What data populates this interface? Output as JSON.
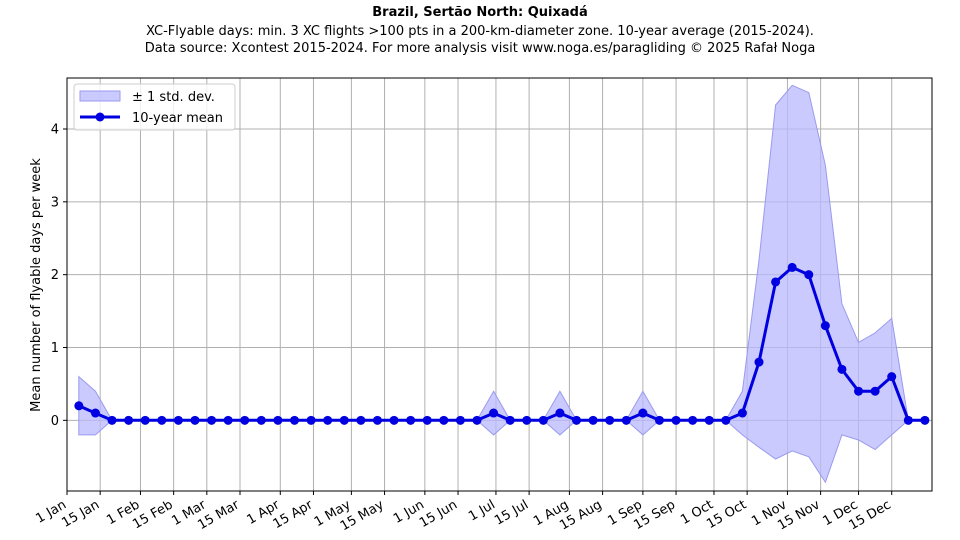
{
  "chart_data": {
    "type": "line",
    "title": "Brazil, Sertão North: Quixadá",
    "subtitle_lines": [
      "XC-Flyable days: min. 3 XC flights >100 pts in a 200-km-diameter zone. 10-year average (2015-2024).",
      "Data source: Xcontest 2015-2024. For more analysis visit www.noga.es/paragliding © 2025 Rafał Noga"
    ],
    "ylabel": "Mean number of flyable days per week",
    "xlabel": "",
    "xlim": [
      0,
      365
    ],
    "ylim": [
      -0.97,
      4.7
    ],
    "yticks": [
      0,
      1,
      2,
      3,
      4
    ],
    "xticks": [
      {
        "day": 0,
        "label": "1 Jan"
      },
      {
        "day": 14,
        "label": "15 Jan"
      },
      {
        "day": 31,
        "label": "1 Feb"
      },
      {
        "day": 45,
        "label": "15 Feb"
      },
      {
        "day": 59,
        "label": "1 Mar"
      },
      {
        "day": 73,
        "label": "15 Mar"
      },
      {
        "day": 90,
        "label": "1 Apr"
      },
      {
        "day": 104,
        "label": "15 Apr"
      },
      {
        "day": 120,
        "label": "1 May"
      },
      {
        "day": 134,
        "label": "15 May"
      },
      {
        "day": 151,
        "label": "1 Jun"
      },
      {
        "day": 165,
        "label": "15 Jun"
      },
      {
        "day": 181,
        "label": "1 Jul"
      },
      {
        "day": 195,
        "label": "15 Jul"
      },
      {
        "day": 212,
        "label": "1 Aug"
      },
      {
        "day": 226,
        "label": "15 Aug"
      },
      {
        "day": 243,
        "label": "1 Sep"
      },
      {
        "day": 257,
        "label": "15 Sep"
      },
      {
        "day": 273,
        "label": "1 Oct"
      },
      {
        "day": 287,
        "label": "15 Oct"
      },
      {
        "day": 304,
        "label": "1 Nov"
      },
      {
        "day": 318,
        "label": "15 Nov"
      },
      {
        "day": 334,
        "label": "1 Dec"
      },
      {
        "day": 348,
        "label": "15 Dec"
      }
    ],
    "grid": true,
    "legend": {
      "position": "top-left",
      "entries": [
        "± 1 std. dev.",
        "10-year mean"
      ]
    },
    "colors": {
      "line": "#0000e0",
      "band": "#b8b8ff",
      "band_edge": "#9a9aee",
      "grid": "#b0b0b0"
    },
    "series": [
      {
        "name": "10-year mean",
        "x": [
          5,
          12,
          19,
          26,
          33,
          40,
          47,
          54,
          61,
          68,
          75,
          82,
          89,
          96,
          103,
          110,
          117,
          124,
          131,
          138,
          145,
          152,
          159,
          166,
          173,
          180,
          187,
          194,
          201,
          208,
          215,
          222,
          229,
          236,
          243,
          250,
          257,
          264,
          271,
          278,
          285,
          292,
          299,
          306,
          313,
          320,
          327,
          334,
          341,
          348,
          355,
          362
        ],
        "values": [
          0.2,
          0.1,
          0,
          0,
          0,
          0,
          0,
          0,
          0,
          0,
          0,
          0,
          0,
          0,
          0,
          0,
          0,
          0,
          0,
          0,
          0,
          0,
          0,
          0,
          0,
          0.1,
          0,
          0,
          0,
          0.1,
          0,
          0,
          0,
          0,
          0.1,
          0,
          0,
          0,
          0,
          0,
          0.1,
          0.8,
          1.9,
          2.1,
          2.0,
          1.3,
          0.7,
          0.4,
          0.4,
          0.6,
          0,
          0
        ],
        "std_upper": [
          0.6,
          0.4,
          0,
          0,
          0,
          0,
          0,
          0,
          0,
          0,
          0,
          0,
          0,
          0,
          0,
          0,
          0,
          0,
          0,
          0,
          0,
          0,
          0,
          0,
          0,
          0.4,
          0,
          0,
          0,
          0.4,
          0,
          0,
          0,
          0,
          0.4,
          0,
          0,
          0,
          0,
          0,
          0.4,
          2.2,
          4.33,
          4.6,
          4.5,
          3.5,
          1.6,
          1.07,
          1.2,
          1.4,
          0,
          0
        ],
        "std_lower": [
          -0.2,
          -0.2,
          0,
          0,
          0,
          0,
          0,
          0,
          0,
          0,
          0,
          0,
          0,
          0,
          0,
          0,
          0,
          0,
          0,
          0,
          0,
          0,
          0,
          0,
          0,
          -0.2,
          0,
          0,
          0,
          -0.2,
          0,
          0,
          0,
          0,
          -0.2,
          0,
          0,
          0,
          0,
          0,
          -0.2,
          -0.37,
          -0.53,
          -0.42,
          -0.5,
          -0.85,
          -0.2,
          -0.27,
          -0.4,
          -0.2,
          0,
          0
        ]
      }
    ]
  }
}
